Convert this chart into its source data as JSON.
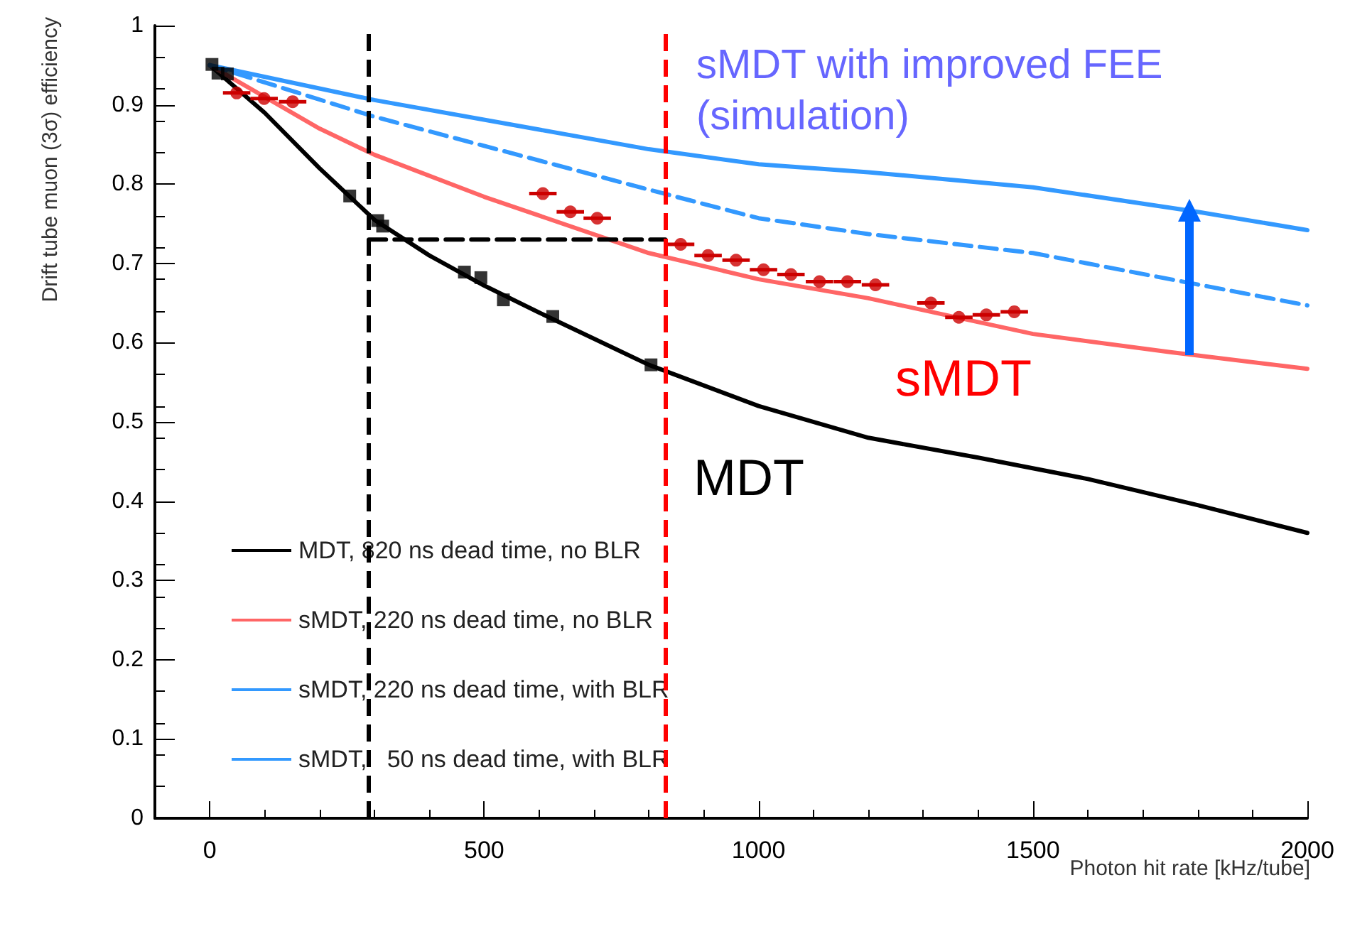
{
  "chart_data": {
    "type": "line",
    "xlabel": "Photon hit rate [kHz/tube]",
    "ylabel": "Drift tube muon (3σ) efficiency",
    "xlim": [
      -100,
      2000
    ],
    "xticks": [
      0,
      500,
      1000,
      1500,
      2000
    ],
    "ylim": [
      0,
      1
    ],
    "yticks": [
      0,
      0.1,
      0.2,
      0.3,
      0.4,
      0.5,
      0.6,
      0.7,
      0.8,
      0.9,
      1
    ],
    "grid": false,
    "legend": "bottom left",
    "marker": "none",
    "line_style": "solid",
    "series": [
      {
        "name": "MDT, 820 ns dead time, no BLR",
        "color": "#000000",
        "x": [
          0,
          100,
          200,
          300,
          400,
          500,
          600,
          800,
          1000,
          1200,
          1400,
          1600,
          1800,
          2000
        ],
        "values": [
          0.95,
          0.89,
          0.82,
          0.755,
          0.71,
          0.672,
          0.638,
          0.572,
          0.52,
          0.48,
          0.455,
          0.428,
          0.395,
          0.36
        ]
      },
      {
        "name": "sMDT, 220 ns dead time, no BLR",
        "color": "#ff6666",
        "x": [
          0,
          100,
          200,
          300,
          500,
          800,
          1000,
          1200,
          1500,
          1750,
          2000
        ],
        "values": [
          0.95,
          0.91,
          0.87,
          0.837,
          0.784,
          0.713,
          0.68,
          0.656,
          0.611,
          0.588,
          0.567
        ]
      },
      {
        "name": "sMDT, 220 ns dead time, with BLR",
        "color": "#3399ff",
        "line_style": "dashed",
        "x": [
          0,
          300,
          800,
          1000,
          1200,
          1500,
          2000
        ],
        "values": [
          0.95,
          0.885,
          0.793,
          0.757,
          0.737,
          0.713,
          0.647
        ]
      },
      {
        "name": "sMDT,   50 ns dead time, with BLR",
        "color": "#3399ff",
        "x": [
          0,
          300,
          800,
          1000,
          1200,
          1500,
          1800,
          2000
        ],
        "values": [
          0.95,
          0.906,
          0.844,
          0.825,
          0.815,
          0.796,
          0.765,
          0.742
        ]
      },
      {
        "type": "scatter",
        "color": "#000000",
        "marker": "square",
        "x": [
          4,
          15,
          32,
          255,
          306,
          315,
          464,
          494,
          535,
          625,
          804
        ],
        "values": [
          0.951,
          0.94,
          0.939,
          0.785,
          0.754,
          0.747,
          0.689,
          0.682,
          0.654,
          0.633,
          0.572
        ]
      },
      {
        "type": "scatter",
        "color": "#cc0000",
        "marker": "circle",
        "x": [
          49,
          99,
          151,
          607,
          657,
          706,
          858,
          908,
          959,
          1009,
          1059,
          1111,
          1162,
          1213,
          1314,
          1365,
          1415,
          1466
        ],
        "values": [
          0.915,
          0.908,
          0.904,
          0.788,
          0.765,
          0.757,
          0.724,
          0.71,
          0.704,
          0.692,
          0.686,
          0.677,
          0.677,
          0.673,
          0.65,
          0.632,
          0.635,
          0.639
        ],
        "xerrors": [
          25,
          25,
          25,
          25,
          25,
          25,
          25,
          25,
          25,
          25,
          25,
          25,
          25,
          25,
          25,
          25,
          25,
          25
        ]
      },
      {
        "type": "line",
        "color": "#000000",
        "line_style": "dashed",
        "x": [
          290,
          830
        ],
        "values": [
          0.73,
          0.73
        ]
      }
    ],
    "ref_lines": [
      {
        "axis": "x",
        "value": 290,
        "color": "#000000",
        "line_style": "dashed"
      },
      {
        "axis": "x",
        "value": 830,
        "color": "#ff0000",
        "line_style": "dashed"
      }
    ],
    "annotations": [
      "sMDT with improved FEE\n(simulation)",
      "sMDT",
      "MDT"
    ]
  }
}
